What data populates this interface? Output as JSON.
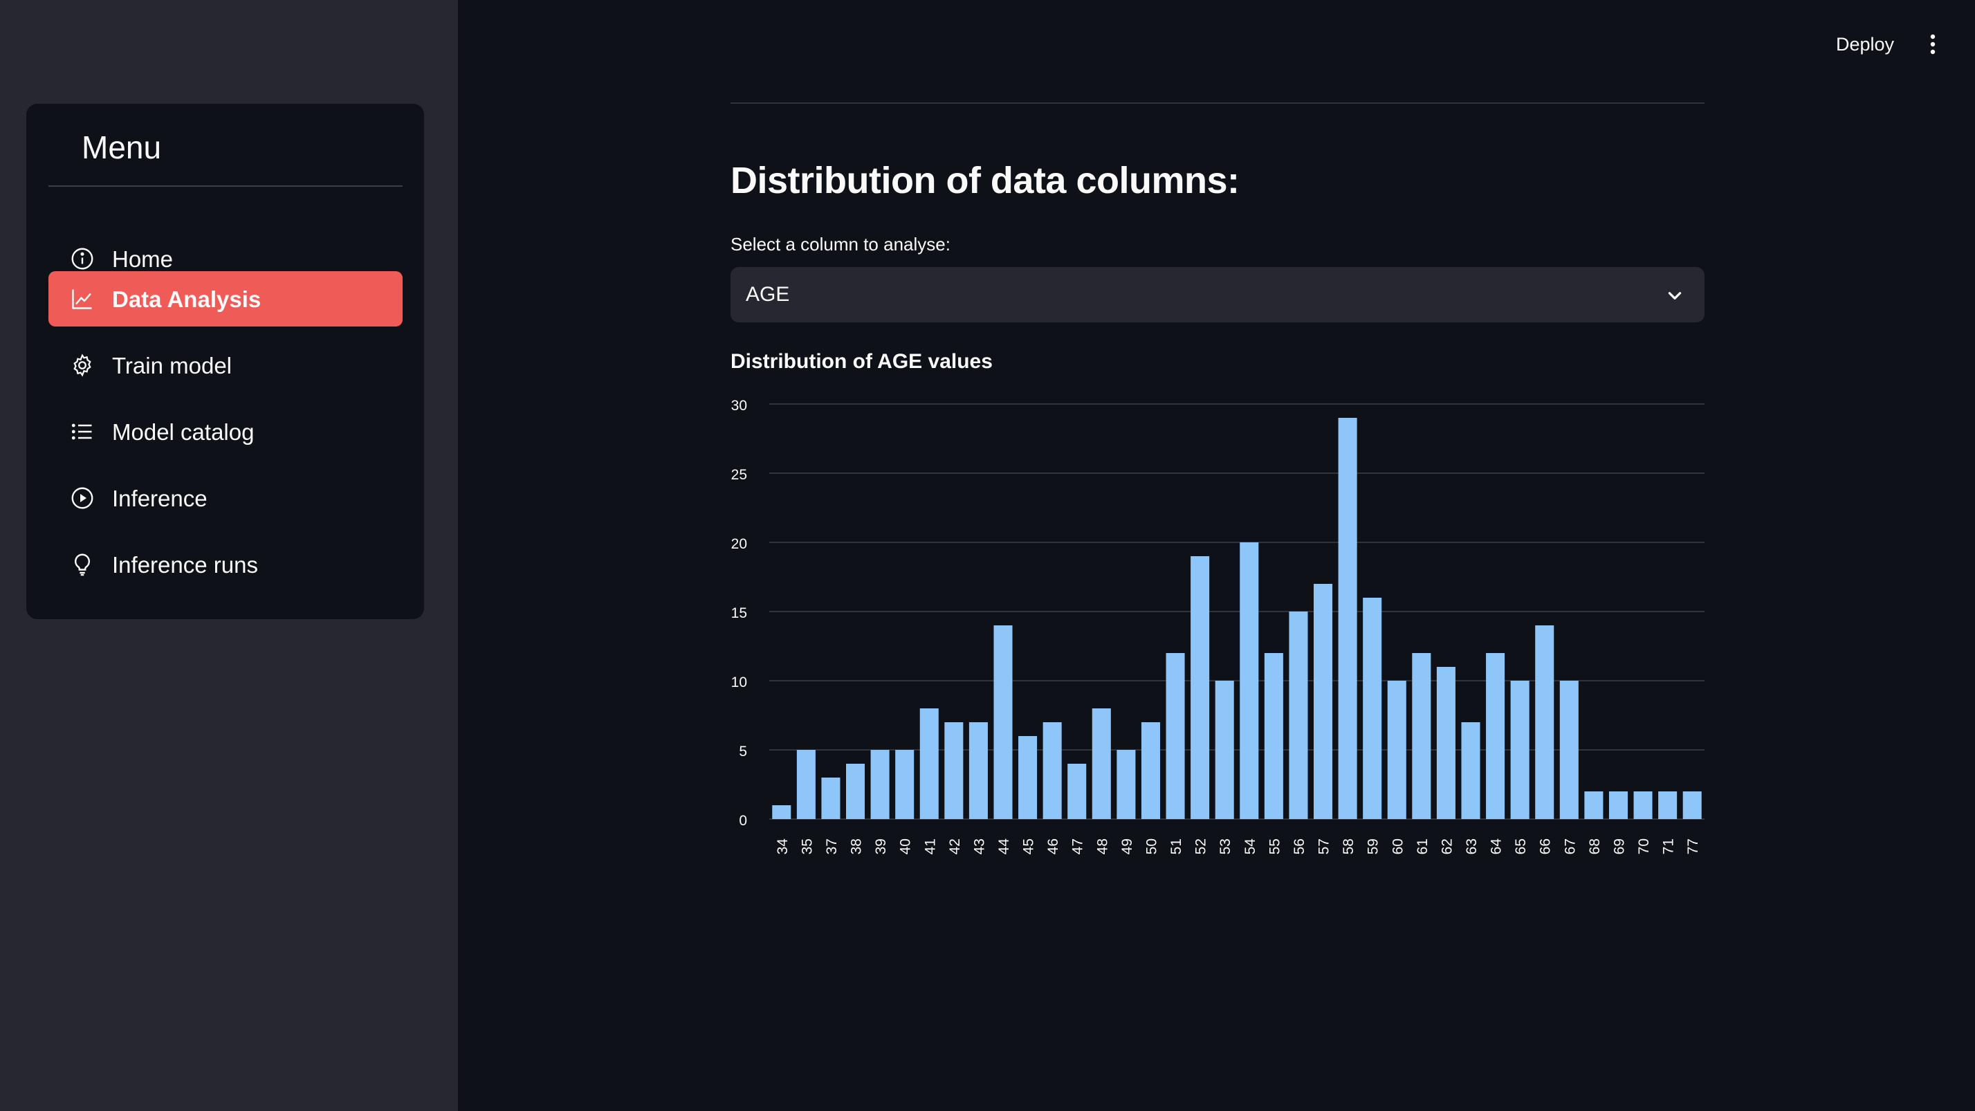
{
  "sidebar": {
    "menu_title": "Menu",
    "items": [
      {
        "label": "Home",
        "icon": "info-circle-icon",
        "active": false
      },
      {
        "label": "Data Analysis",
        "icon": "line-chart-icon",
        "active": true
      },
      {
        "label": "Train model",
        "icon": "gear-icon",
        "active": false
      },
      {
        "label": "Model catalog",
        "icon": "list-icon",
        "active": false
      },
      {
        "label": "Inference",
        "icon": "play-circle-icon",
        "active": false
      },
      {
        "label": "Inference runs",
        "icon": "lightbulb-icon",
        "active": false
      }
    ]
  },
  "header": {
    "deploy_label": "Deploy",
    "more_icon": "vertical-dots-icon"
  },
  "main": {
    "heading": "Distribution of data columns:",
    "select_label": "Select a column to analyse:",
    "select_value": "AGE",
    "chart_title": "Distribution of AGE values"
  },
  "colors": {
    "background": "#0e1117",
    "sidebar": "#262730",
    "accent": "#ef5b57",
    "bar": "#8ec6f9"
  },
  "chart_data": {
    "type": "bar",
    "title": "Distribution of AGE values",
    "xlabel": "",
    "ylabel": "",
    "categories": [
      "34",
      "35",
      "37",
      "38",
      "39",
      "40",
      "41",
      "42",
      "43",
      "44",
      "45",
      "46",
      "47",
      "48",
      "49",
      "50",
      "51",
      "52",
      "53",
      "54",
      "55",
      "56",
      "57",
      "58",
      "59",
      "60",
      "61",
      "62",
      "63",
      "64",
      "65",
      "66",
      "67",
      "68",
      "69",
      "70",
      "71",
      "77"
    ],
    "values": [
      1,
      5,
      3,
      4,
      5,
      5,
      8,
      7,
      7,
      14,
      6,
      7,
      4,
      8,
      5,
      7,
      12,
      19,
      10,
      20,
      12,
      15,
      17,
      29,
      16,
      10,
      12,
      11,
      7,
      12,
      10,
      14,
      10,
      2,
      2,
      2,
      2,
      2
    ],
    "yticks": [
      0,
      5,
      10,
      15,
      20,
      25,
      30
    ],
    "ylim": [
      0,
      30
    ],
    "grid": true
  }
}
